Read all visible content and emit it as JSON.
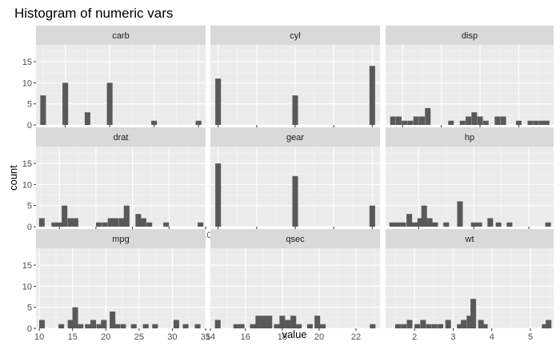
{
  "chart_data": {
    "type": "bar",
    "title": "Histogram of numeric vars",
    "xlabel": "value",
    "ylabel": "count",
    "ylim": [
      0,
      19
    ],
    "yticks": [
      0,
      5,
      10,
      15
    ],
    "grid": true,
    "panels": [
      {
        "name": "carb",
        "xlim": [
          0.68,
          8.32
        ],
        "xticks": [
          2,
          4,
          6,
          8
        ],
        "bins": [
          {
            "x": 1.0,
            "count": 7
          },
          {
            "x": 2.0,
            "count": 10
          },
          {
            "x": 3.0,
            "count": 3
          },
          {
            "x": 4.0,
            "count": 10
          },
          {
            "x": 6.0,
            "count": 1
          },
          {
            "x": 8.0,
            "count": 1
          }
        ]
      },
      {
        "name": "cyl",
        "xlim": [
          3.8,
          8.2
        ],
        "xticks": [
          4,
          5,
          6,
          7,
          8
        ],
        "bins": [
          {
            "x": 4.0,
            "count": 11
          },
          {
            "x": 6.0,
            "count": 7
          },
          {
            "x": 8.0,
            "count": 14
          }
        ]
      },
      {
        "name": "disp",
        "xlim": [
          56,
          490
        ],
        "xticks": [
          100,
          200,
          300,
          400
        ],
        "bins": [
          {
            "x": 75,
            "count": 2
          },
          {
            "x": 90,
            "count": 2
          },
          {
            "x": 105,
            "count": 1
          },
          {
            "x": 120,
            "count": 1
          },
          {
            "x": 135,
            "count": 2
          },
          {
            "x": 150,
            "count": 2
          },
          {
            "x": 165,
            "count": 4
          },
          {
            "x": 225,
            "count": 1
          },
          {
            "x": 255,
            "count": 1
          },
          {
            "x": 270,
            "count": 2
          },
          {
            "x": 285,
            "count": 3
          },
          {
            "x": 300,
            "count": 2
          },
          {
            "x": 315,
            "count": 1
          },
          {
            "x": 345,
            "count": 2
          },
          {
            "x": 360,
            "count": 2
          },
          {
            "x": 400,
            "count": 1
          },
          {
            "x": 430,
            "count": 1
          },
          {
            "x": 445,
            "count": 1
          },
          {
            "x": 460,
            "count": 1
          },
          {
            "x": 472,
            "count": 1
          }
        ]
      },
      {
        "name": "drat",
        "xlim": [
          2.68,
          5.0
        ],
        "xticks": [
          3.0,
          3.5,
          4.0,
          4.5,
          5.0
        ],
        "bins": [
          {
            "x": 2.76,
            "count": 2
          },
          {
            "x": 2.93,
            "count": 1
          },
          {
            "x": 3.0,
            "count": 1
          },
          {
            "x": 3.07,
            "count": 5
          },
          {
            "x": 3.15,
            "count": 2
          },
          {
            "x": 3.22,
            "count": 2
          },
          {
            "x": 3.54,
            "count": 1
          },
          {
            "x": 3.62,
            "count": 1
          },
          {
            "x": 3.7,
            "count": 2
          },
          {
            "x": 3.77,
            "count": 2
          },
          {
            "x": 3.85,
            "count": 2
          },
          {
            "x": 3.92,
            "count": 5
          },
          {
            "x": 4.08,
            "count": 3
          },
          {
            "x": 4.15,
            "count": 2
          },
          {
            "x": 4.23,
            "count": 1
          },
          {
            "x": 4.46,
            "count": 1
          },
          {
            "x": 4.93,
            "count": 1
          }
        ]
      },
      {
        "name": "gear",
        "xlim": [
          2.9,
          5.1
        ],
        "xticks": [
          3.0,
          3.5,
          4.0,
          4.5,
          5.0
        ],
        "bins": [
          {
            "x": 3.0,
            "count": 15
          },
          {
            "x": 4.0,
            "count": 12
          },
          {
            "x": 5.0,
            "count": 5
          }
        ]
      },
      {
        "name": "hp",
        "xlim": [
          40,
          345
        ],
        "xticks": [
          100,
          200,
          300
        ],
        "bins": [
          {
            "x": 52,
            "count": 1
          },
          {
            "x": 62,
            "count": 1
          },
          {
            "x": 72,
            "count": 1
          },
          {
            "x": 83,
            "count": 3
          },
          {
            "x": 93,
            "count": 1
          },
          {
            "x": 103,
            "count": 2
          },
          {
            "x": 110,
            "count": 5
          },
          {
            "x": 120,
            "count": 2
          },
          {
            "x": 130,
            "count": 1
          },
          {
            "x": 150,
            "count": 1
          },
          {
            "x": 175,
            "count": 6
          },
          {
            "x": 200,
            "count": 1
          },
          {
            "x": 210,
            "count": 1
          },
          {
            "x": 230,
            "count": 2
          },
          {
            "x": 245,
            "count": 1
          },
          {
            "x": 265,
            "count": 1
          },
          {
            "x": 335,
            "count": 1
          }
        ]
      },
      {
        "name": "mpg",
        "xlim": [
          9.5,
          35.0
        ],
        "xticks": [
          10,
          15,
          20,
          25,
          30,
          35
        ],
        "bins": [
          {
            "x": 10.4,
            "count": 2
          },
          {
            "x": 13.3,
            "count": 1
          },
          {
            "x": 14.7,
            "count": 2
          },
          {
            "x": 15.4,
            "count": 5
          },
          {
            "x": 16.2,
            "count": 1
          },
          {
            "x": 17.3,
            "count": 1
          },
          {
            "x": 18.1,
            "count": 2
          },
          {
            "x": 19.0,
            "count": 1
          },
          {
            "x": 19.7,
            "count": 2
          },
          {
            "x": 21.0,
            "count": 4
          },
          {
            "x": 21.7,
            "count": 1
          },
          {
            "x": 22.6,
            "count": 1
          },
          {
            "x": 24.2,
            "count": 1
          },
          {
            "x": 26.0,
            "count": 1
          },
          {
            "x": 27.4,
            "count": 1
          },
          {
            "x": 30.6,
            "count": 2
          },
          {
            "x": 32.0,
            "count": 1
          },
          {
            "x": 33.8,
            "count": 1
          }
        ]
      },
      {
        "name": "qsec",
        "xlim": [
          14.1,
          23.3
        ],
        "xticks": [
          14,
          16,
          18,
          20,
          22
        ],
        "bins": [
          {
            "x": 14.5,
            "count": 2
          },
          {
            "x": 15.5,
            "count": 1
          },
          {
            "x": 15.8,
            "count": 1
          },
          {
            "x": 16.4,
            "count": 1
          },
          {
            "x": 16.7,
            "count": 3
          },
          {
            "x": 17.0,
            "count": 3
          },
          {
            "x": 17.3,
            "count": 3
          },
          {
            "x": 17.7,
            "count": 1
          },
          {
            "x": 18.0,
            "count": 3
          },
          {
            "x": 18.3,
            "count": 2
          },
          {
            "x": 18.6,
            "count": 3
          },
          {
            "x": 18.9,
            "count": 1
          },
          {
            "x": 19.5,
            "count": 1
          },
          {
            "x": 19.9,
            "count": 3
          },
          {
            "x": 20.2,
            "count": 1
          },
          {
            "x": 22.9,
            "count": 1
          }
        ]
      },
      {
        "name": "wt",
        "xlim": [
          1.25,
          5.6
        ],
        "xticks": [
          2,
          3,
          4,
          5
        ],
        "bins": [
          {
            "x": 1.57,
            "count": 1
          },
          {
            "x": 1.72,
            "count": 1
          },
          {
            "x": 1.87,
            "count": 2
          },
          {
            "x": 2.07,
            "count": 1
          },
          {
            "x": 2.22,
            "count": 2
          },
          {
            "x": 2.37,
            "count": 1
          },
          {
            "x": 2.52,
            "count": 1
          },
          {
            "x": 2.67,
            "count": 1
          },
          {
            "x": 2.87,
            "count": 2
          },
          {
            "x": 3.17,
            "count": 1
          },
          {
            "x": 3.27,
            "count": 2
          },
          {
            "x": 3.42,
            "count": 3
          },
          {
            "x": 3.52,
            "count": 7
          },
          {
            "x": 3.72,
            "count": 2
          },
          {
            "x": 3.82,
            "count": 1
          },
          {
            "x": 5.37,
            "count": 1
          },
          {
            "x": 5.47,
            "count": 2
          }
        ]
      }
    ]
  }
}
